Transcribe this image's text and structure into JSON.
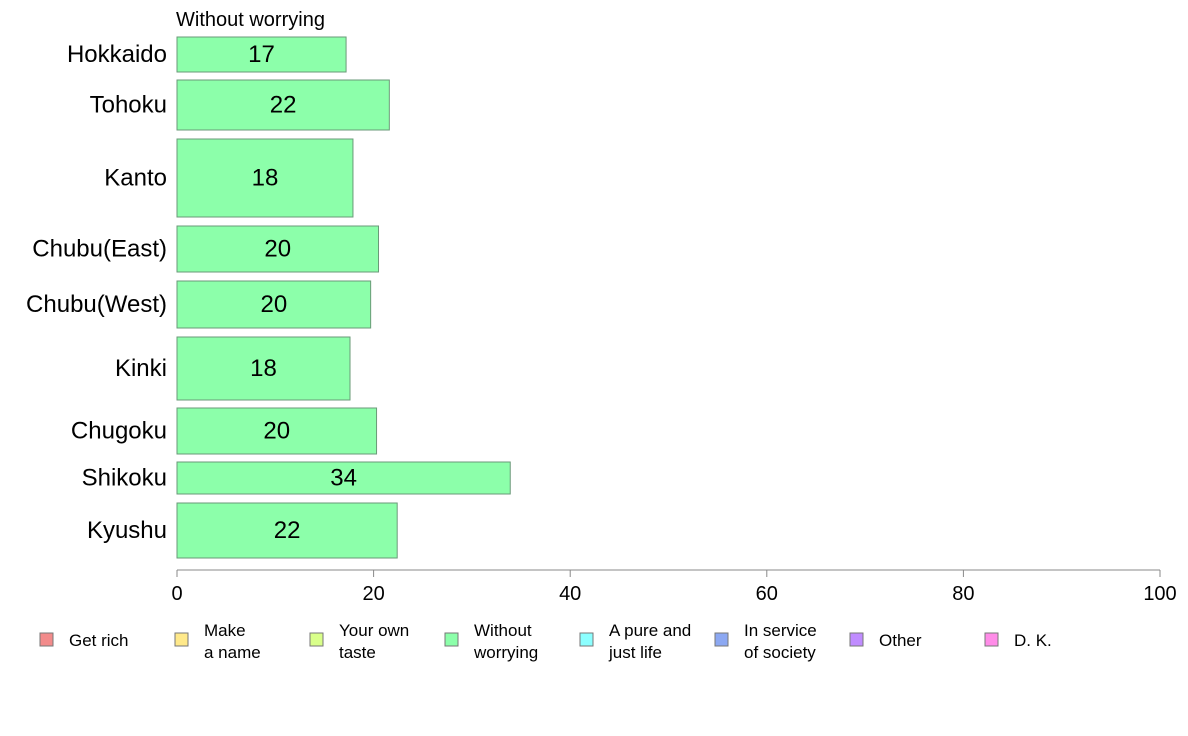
{
  "chart_data": {
    "type": "bar",
    "orientation": "horizontal",
    "title": "Without worrying",
    "categories": [
      "Hokkaido",
      "Tohoku",
      "Kanto",
      "Chubu(East)",
      "Chubu(West)",
      "Kinki",
      "Chugoku",
      "Shikoku",
      "Kyushu"
    ],
    "values": [
      17,
      22,
      18,
      20,
      20,
      18,
      20,
      34,
      22
    ],
    "bar_widths": [
      17.2,
      21.6,
      17.9,
      20.5,
      19.7,
      17.6,
      20.3,
      33.9,
      22.4
    ],
    "xlim": [
      0,
      100
    ],
    "xticks": [
      "0",
      "20",
      "40",
      "60",
      "80",
      "100"
    ],
    "grid": false,
    "bar_color": "#8CFFAA",
    "legend": {
      "placement": "bottom",
      "entries": [
        {
          "lines": [
            "Get rich"
          ],
          "color": "#F28B8B"
        },
        {
          "lines": [
            "Make",
            "a name"
          ],
          "color": "#FFE98A"
        },
        {
          "lines": [
            "Your own",
            "taste"
          ],
          "color": "#D9FF8A"
        },
        {
          "lines": [
            "Without",
            "worrying"
          ],
          "color": "#8CFFAA"
        },
        {
          "lines": [
            "A pure and",
            "just life"
          ],
          "color": "#8CFFFF"
        },
        {
          "lines": [
            "In service",
            "of society"
          ],
          "color": "#8CA8F2"
        },
        {
          "lines": [
            "Other"
          ],
          "color": "#C08CFF"
        },
        {
          "lines": [
            "D. K."
          ],
          "color": "#FF8CE8"
        }
      ]
    }
  }
}
